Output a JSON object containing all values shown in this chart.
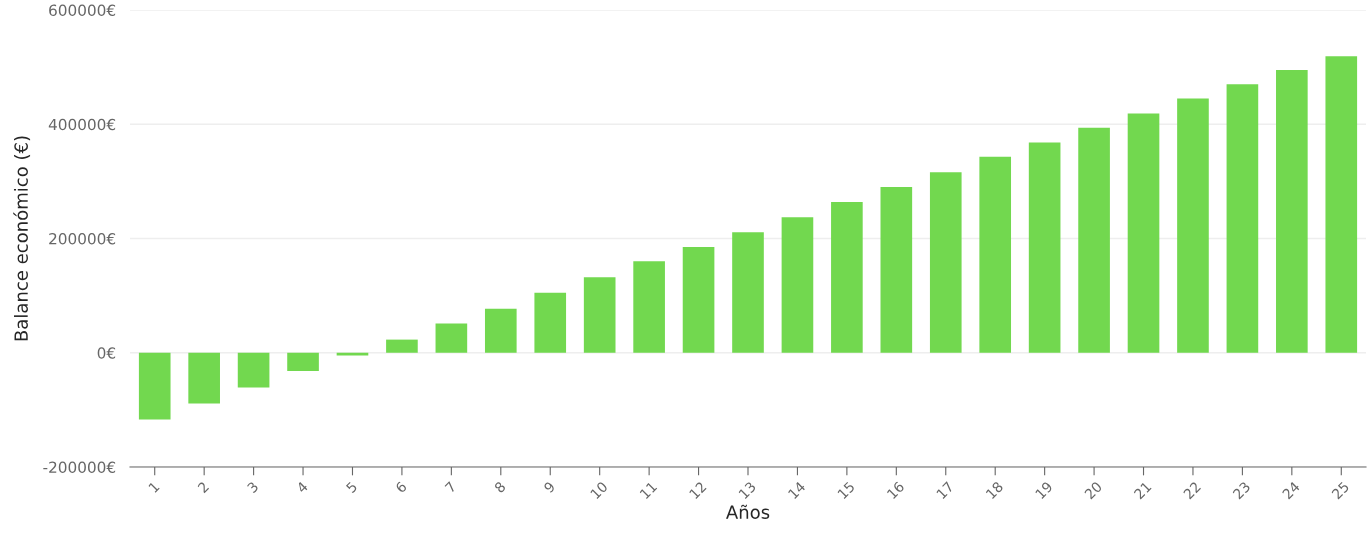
{
  "chart_data": {
    "type": "bar",
    "xlabel": "Años",
    "ylabel": "Balance económico (€)",
    "categories": [
      "1",
      "2",
      "3",
      "4",
      "5",
      "6",
      "7",
      "8",
      "9",
      "10",
      "11",
      "12",
      "13",
      "14",
      "15",
      "16",
      "17",
      "18",
      "19",
      "20",
      "21",
      "22",
      "23",
      "24",
      "25"
    ],
    "values": [
      -117000,
      -89000,
      -61000,
      -32000,
      -5000,
      23000,
      51000,
      77000,
      105000,
      132000,
      160000,
      185000,
      211000,
      237000,
      264000,
      290000,
      316000,
      343000,
      368000,
      394000,
      419000,
      445000,
      470000,
      495000,
      519000
    ],
    "color": "#72d84f",
    "ylim": [
      -200000,
      600000
    ],
    "yticks": [
      {
        "value": -200000,
        "label": "-200000€"
      },
      {
        "value": 0,
        "label": "0€"
      },
      {
        "value": 200000,
        "label": "200000€"
      },
      {
        "value": 400000,
        "label": "400000€"
      },
      {
        "value": 600000,
        "label": "600000€"
      }
    ],
    "grid": "y"
  }
}
